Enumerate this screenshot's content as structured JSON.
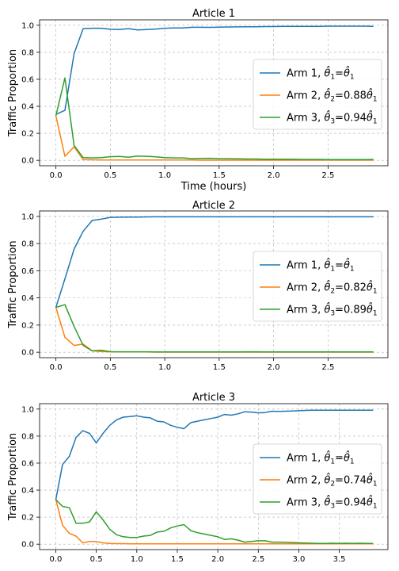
{
  "colors": {
    "arm1": "#1f77b4",
    "arm2": "#ff7f0e",
    "arm3": "#2ca02c"
  },
  "chart_data": [
    {
      "type": "line",
      "title": "Article 1",
      "xlabel": "Time (hours)",
      "ylabel": "Traffic Proportion",
      "xlim": [
        -0.15,
        3.05
      ],
      "ylim": [
        -0.04,
        1.04
      ],
      "xticks": [
        "0.0",
        "0.5",
        "1.0",
        "1.5",
        "2.0",
        "2.5"
      ],
      "yticks": [
        "0.0",
        "0.2",
        "0.4",
        "0.6",
        "0.8",
        "1.0"
      ],
      "grid": true,
      "legend_position": "center-right",
      "x": [
        0,
        0.083,
        0.167,
        0.25,
        0.333,
        0.417,
        0.5,
        0.583,
        0.667,
        0.75,
        0.833,
        0.917,
        1.0,
        1.083,
        1.167,
        1.25,
        1.333,
        1.417,
        1.5,
        1.583,
        1.667,
        1.75,
        1.833,
        1.917,
        2.0,
        2.083,
        2.167,
        2.25,
        2.333,
        2.417,
        2.5,
        2.583,
        2.667,
        2.75,
        2.833,
        2.917
      ],
      "series": [
        {
          "name": "Arm 1, θ̂₁=θ̂₁",
          "legend": [
            "Arm 1, ",
            "θ̂",
            "1",
            "=",
            "θ̂",
            "1",
            ""
          ],
          "values": [
            0.34,
            0.37,
            0.79,
            0.975,
            0.978,
            0.978,
            0.97,
            0.968,
            0.975,
            0.965,
            0.968,
            0.972,
            0.978,
            0.98,
            0.98,
            0.985,
            0.985,
            0.984,
            0.986,
            0.987,
            0.988,
            0.989,
            0.989,
            0.99,
            0.99,
            0.991,
            0.991,
            0.992,
            0.992,
            0.992,
            0.993,
            0.993,
            0.993,
            0.993,
            0.993,
            0.992
          ]
        },
        {
          "name": "Arm 2, θ̂₂=0.88θ̂₁",
          "legend": [
            "Arm 2, ",
            "θ̂",
            "2",
            "=0.88",
            "θ̂",
            "1",
            ""
          ],
          "values": [
            0.33,
            0.03,
            0.1,
            0.005,
            0.004,
            0.003,
            0.003,
            0.003,
            0.002,
            0.002,
            0.002,
            0.002,
            0.002,
            0.002,
            0.002,
            0.002,
            0.001,
            0.001,
            0.001,
            0.001,
            0.001,
            0.001,
            0.001,
            0.001,
            0.001,
            0.001,
            0.001,
            0.001,
            0.001,
            0.001,
            0.001,
            0.001,
            0.001,
            0.001,
            0.001,
            0.001
          ]
        },
        {
          "name": "Arm 3, θ̂₃=0.94θ̂₁",
          "legend": [
            "Arm 3, ",
            "θ̂",
            "3",
            "=0.94",
            "θ̂",
            "1",
            ""
          ],
          "values": [
            0.33,
            0.61,
            0.11,
            0.02,
            0.018,
            0.02,
            0.027,
            0.029,
            0.023,
            0.032,
            0.03,
            0.026,
            0.02,
            0.018,
            0.018,
            0.013,
            0.014,
            0.015,
            0.013,
            0.012,
            0.011,
            0.01,
            0.01,
            0.009,
            0.009,
            0.008,
            0.008,
            0.007,
            0.007,
            0.007,
            0.006,
            0.006,
            0.006,
            0.006,
            0.006,
            0.007
          ]
        }
      ]
    },
    {
      "type": "line",
      "title": "Article 2",
      "xlabel": "",
      "ylabel": "Traffic Proportion",
      "xlim": [
        -0.15,
        3.05
      ],
      "ylim": [
        -0.04,
        1.04
      ],
      "xticks": [
        "0.0",
        "0.5",
        "1.0",
        "1.5",
        "2.0",
        "2.5"
      ],
      "yticks": [
        "0.0",
        "0.2",
        "0.4",
        "0.6",
        "0.8",
        "1.0"
      ],
      "grid": true,
      "legend_position": "center-right",
      "x": [
        0,
        0.083,
        0.167,
        0.25,
        0.333,
        0.417,
        0.5,
        0.583,
        0.667,
        0.75,
        0.833,
        0.917,
        1.0,
        1.083,
        1.167,
        1.25,
        1.333,
        1.417,
        1.5,
        1.583,
        1.667,
        1.75,
        1.833,
        1.917,
        2.0,
        2.083,
        2.167,
        2.25,
        2.333,
        2.417,
        2.5,
        2.583,
        2.667,
        2.75,
        2.833,
        2.917
      ],
      "series": [
        {
          "name": "Arm 1, θ̂₁=θ̂₁",
          "legend": [
            "Arm 1, ",
            "θ̂",
            "1",
            "=",
            "θ̂",
            "1",
            ""
          ],
          "values": [
            0.33,
            0.54,
            0.76,
            0.89,
            0.97,
            0.98,
            0.993,
            0.994,
            0.995,
            0.995,
            0.996,
            0.997,
            0.997,
            0.997,
            0.997,
            0.997,
            0.997,
            0.997,
            0.997,
            0.997,
            0.997,
            0.997,
            0.997,
            0.997,
            0.997,
            0.997,
            0.997,
            0.997,
            0.997,
            0.997,
            0.997,
            0.997,
            0.997,
            0.997,
            0.997,
            0.997
          ]
        },
        {
          "name": "Arm 2, θ̂₂=0.82θ̂₁",
          "legend": [
            "Arm 2, ",
            "θ̂",
            "2",
            "=0.82",
            "θ̂",
            "1",
            ""
          ],
          "values": [
            0.33,
            0.11,
            0.05,
            0.06,
            0.01,
            0.005,
            0.003,
            0.002,
            0.002,
            0.002,
            0.002,
            0.001,
            0.001,
            0.001,
            0.001,
            0.001,
            0.001,
            0.001,
            0.001,
            0.001,
            0.001,
            0.001,
            0.001,
            0.001,
            0.001,
            0.001,
            0.001,
            0.001,
            0.001,
            0.001,
            0.001,
            0.001,
            0.001,
            0.001,
            0.001,
            0.001
          ]
        },
        {
          "name": "Arm 3, θ̂₃=0.89θ̂₁",
          "legend": [
            "Arm 3, ",
            "θ̂",
            "3",
            "=0.89",
            "θ̂",
            "1",
            ""
          ],
          "values": [
            0.33,
            0.35,
            0.19,
            0.05,
            0.01,
            0.015,
            0.004,
            0.003,
            0.003,
            0.003,
            0.003,
            0.002,
            0.002,
            0.002,
            0.002,
            0.002,
            0.002,
            0.002,
            0.002,
            0.002,
            0.002,
            0.003,
            0.003,
            0.002,
            0.002,
            0.002,
            0.002,
            0.002,
            0.002,
            0.002,
            0.002,
            0.002,
            0.002,
            0.002,
            0.002,
            0.002
          ]
        }
      ]
    },
    {
      "type": "line",
      "title": "Article 3",
      "xlabel": "",
      "ylabel": "Traffic Proportion",
      "xlim": [
        -0.2,
        4.1
      ],
      "ylim": [
        -0.04,
        1.04
      ],
      "xticks": [
        "0.0",
        "0.5",
        "1.0",
        "1.5",
        "2.0",
        "2.5",
        "3.0",
        "3.5"
      ],
      "yticks": [
        "0.0",
        "0.2",
        "0.4",
        "0.6",
        "0.8",
        "1.0"
      ],
      "grid": true,
      "legend_position": "center-right",
      "x": [
        0,
        0.083,
        0.167,
        0.25,
        0.333,
        0.417,
        0.5,
        0.583,
        0.667,
        0.75,
        0.833,
        0.917,
        1.0,
        1.083,
        1.167,
        1.25,
        1.333,
        1.417,
        1.5,
        1.583,
        1.667,
        1.75,
        1.833,
        1.917,
        2.0,
        2.083,
        2.167,
        2.25,
        2.333,
        2.417,
        2.5,
        2.583,
        2.667,
        2.75,
        2.833,
        2.917,
        3.0,
        3.083,
        3.167,
        3.25,
        3.333,
        3.417,
        3.5,
        3.583,
        3.667,
        3.75,
        3.833,
        3.917
      ],
      "series": [
        {
          "name": "Arm 1, θ̂₁=θ̂₁",
          "legend": [
            "Arm 1, ",
            "θ̂",
            "1",
            "=",
            "θ̂",
            "1",
            ""
          ],
          "values": [
            0.33,
            0.59,
            0.65,
            0.79,
            0.84,
            0.82,
            0.75,
            0.82,
            0.88,
            0.92,
            0.94,
            0.945,
            0.95,
            0.94,
            0.935,
            0.91,
            0.905,
            0.88,
            0.865,
            0.855,
            0.9,
            0.91,
            0.92,
            0.93,
            0.94,
            0.96,
            0.955,
            0.965,
            0.98,
            0.978,
            0.972,
            0.974,
            0.984,
            0.983,
            0.984,
            0.986,
            0.988,
            0.99,
            0.991,
            0.992,
            0.992,
            0.991,
            0.992,
            0.991,
            0.992,
            0.991,
            0.992,
            0.992
          ]
        },
        {
          "name": "Arm 2, θ̂₂=0.74θ̂₁",
          "legend": [
            "Arm 2, ",
            "θ̂",
            "2",
            "=0.74",
            "θ̂",
            "1",
            ""
          ],
          "values": [
            0.33,
            0.14,
            0.08,
            0.06,
            0.01,
            0.02,
            0.02,
            0.01,
            0.005,
            0.004,
            0.004,
            0.003,
            0.003,
            0.003,
            0.003,
            0.003,
            0.003,
            0.003,
            0.003,
            0.003,
            0.002,
            0.002,
            0.002,
            0.002,
            0.002,
            0.002,
            0.002,
            0.002,
            0.002,
            0.002,
            0.002,
            0.002,
            0.002,
            0.002,
            0.002,
            0.002,
            0.002,
            0.002,
            0.002,
            0.002,
            0.002,
            0.002,
            0.002,
            0.002,
            0.002,
            0.002,
            0.002,
            0.002
          ]
        },
        {
          "name": "Arm 3, θ̂₃=0.94θ̂₁",
          "legend": [
            "Arm 3, ",
            "θ̂",
            "3",
            "=0.94",
            "θ̂",
            "1",
            ""
          ],
          "values": [
            0.33,
            0.28,
            0.27,
            0.155,
            0.155,
            0.165,
            0.24,
            0.18,
            0.11,
            0.07,
            0.055,
            0.05,
            0.05,
            0.06,
            0.065,
            0.09,
            0.095,
            0.12,
            0.135,
            0.145,
            0.1,
            0.085,
            0.075,
            0.065,
            0.055,
            0.035,
            0.04,
            0.03,
            0.015,
            0.02,
            0.025,
            0.025,
            0.015,
            0.015,
            0.014,
            0.012,
            0.01,
            0.008,
            0.007,
            0.006,
            0.006,
            0.007,
            0.006,
            0.007,
            0.006,
            0.007,
            0.006,
            0.006
          ]
        }
      ]
    }
  ]
}
